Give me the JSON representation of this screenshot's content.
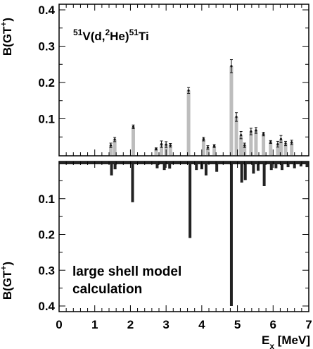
{
  "chart_data": [
    {
      "type": "bar",
      "panel": "top",
      "title_parts": {
        "pre": "51",
        "a": "V(d,",
        "sup2": "2",
        "b": "He)",
        "post": "51",
        "c": "Ti"
      },
      "ylabel": {
        "base": "B(GT",
        "sup": "+",
        "close": ")"
      },
      "xlim": [
        0,
        7
      ],
      "ylim": [
        0,
        0.4
      ],
      "yticks": [
        0.1,
        0.2,
        0.3,
        0.4
      ],
      "ytick_labels": [
        "0.1",
        "0.2",
        "0.3",
        "0.4"
      ],
      "bar_color": "#bdbdbd",
      "x": [
        1.45,
        1.56,
        2.08,
        2.72,
        2.87,
        3.0,
        3.12,
        3.63,
        4.05,
        4.17,
        4.35,
        4.83,
        4.97,
        5.1,
        5.2,
        5.38,
        5.52,
        5.73,
        5.93,
        6.13,
        6.22,
        6.35,
        6.52
      ],
      "values": [
        0.027,
        0.043,
        0.078,
        0.017,
        0.03,
        0.029,
        0.027,
        0.178,
        0.044,
        0.021,
        0.025,
        0.245,
        0.105,
        0.055,
        0.027,
        0.065,
        0.068,
        0.058,
        0.036,
        0.03,
        0.044,
        0.032,
        0.035
      ],
      "errors": [
        0.006,
        0.006,
        0.005,
        0.003,
        0.009,
        0.008,
        0.005,
        0.008,
        0.005,
        0.005,
        0.004,
        0.018,
        0.012,
        0.01,
        0.006,
        0.009,
        0.008,
        0.005,
        0.004,
        0.008,
        0.01,
        0.006,
        0.006
      ]
    },
    {
      "type": "bar",
      "panel": "bottom",
      "ylabel": {
        "base": "B(GT",
        "sup": "+",
        "close": ")"
      },
      "annotation_lines": [
        "large shell model",
        "calculation"
      ],
      "xlabel": {
        "base": "E",
        "sub": "x",
        "unit": " [MeV]"
      },
      "xlim": [
        0,
        7
      ],
      "ylim": [
        0,
        0.4
      ],
      "y_inverted": true,
      "xticks": [
        0,
        1,
        2,
        3,
        4,
        5,
        6,
        7
      ],
      "xtick_labels": [
        "0",
        "1",
        "2",
        "3",
        "4",
        "5",
        "6",
        "7"
      ],
      "yticks": [
        0.1,
        0.2,
        0.3,
        0.4
      ],
      "ytick_labels": [
        "0.1",
        "0.2",
        "0.3",
        "0.4"
      ],
      "bar_color": "#222222",
      "x": [
        1.47,
        1.57,
        2.06,
        2.75,
        2.95,
        3.1,
        3.67,
        3.85,
        4.0,
        4.12,
        4.42,
        4.83,
        5.12,
        5.22,
        5.45,
        5.58,
        5.75,
        5.95,
        6.08,
        6.25,
        6.42,
        6.6,
        6.78,
        6.95
      ],
      "values": [
        0.035,
        0.018,
        0.11,
        0.015,
        0.02,
        0.016,
        0.21,
        0.02,
        0.018,
        0.035,
        0.025,
        0.4,
        0.055,
        0.048,
        0.03,
        0.022,
        0.065,
        0.02,
        0.015,
        0.02,
        0.012,
        0.015,
        0.01,
        0.012
      ]
    }
  ]
}
